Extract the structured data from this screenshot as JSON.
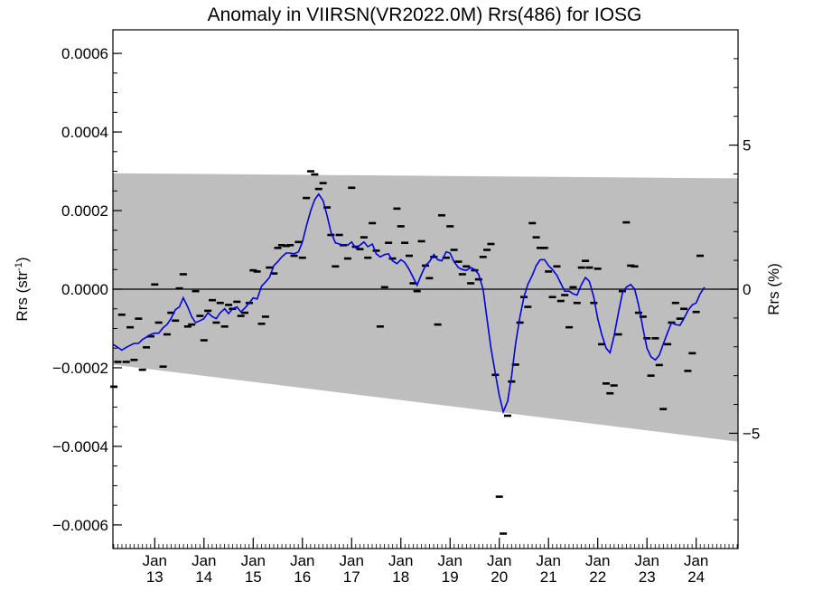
{
  "chart_data": {
    "type": "scatter",
    "title": "Anomaly in VIIRSN(VR2022.0M) Rrs(486) for IOSG",
    "ylabel": "Rrs (str",
    "ylabel_sup": "-1",
    "ylabel_close": ")",
    "y2label": "Rrs (%)",
    "xlabel": "",
    "x_range": [
      2012.15,
      2024.85
    ],
    "ylim": [
      -0.00066,
      0.00066
    ],
    "y2lim": [
      -9.0,
      9.0
    ],
    "y_ticks": [
      "0.0006",
      "0.0004",
      "0.0002",
      "0.0000",
      "−0.0002",
      "−0.0004",
      "−0.0006"
    ],
    "y_tick_values": [
      0.0006,
      0.0004,
      0.0002,
      0.0,
      -0.0002,
      -0.0004,
      -0.0006
    ],
    "y2_ticks": [
      "5",
      "0",
      "−5"
    ],
    "y2_tick_values": [
      5,
      0,
      -5
    ],
    "x_ticks": [
      {
        "month": "Jan",
        "year": "13",
        "value": 2013.0
      },
      {
        "month": "Jan",
        "year": "14",
        "value": 2014.0
      },
      {
        "month": "Jan",
        "year": "15",
        "value": 2015.0
      },
      {
        "month": "Jan",
        "year": "16",
        "value": 2016.0
      },
      {
        "month": "Jan",
        "year": "17",
        "value": 2017.0
      },
      {
        "month": "Jan",
        "year": "18",
        "value": 2018.0
      },
      {
        "month": "Jan",
        "year": "19",
        "value": 2019.0
      },
      {
        "month": "Jan",
        "year": "20",
        "value": 2020.0
      },
      {
        "month": "Jan",
        "year": "21",
        "value": 2021.0
      },
      {
        "month": "Jan",
        "year": "22",
        "value": 2022.0
      },
      {
        "month": "Jan",
        "year": "23",
        "value": 2023.0
      },
      {
        "month": "Jan",
        "year": "24",
        "value": 2024.0
      }
    ],
    "band": {
      "upper": [
        [
          2012.15,
          0.000295
        ],
        [
          2024.85,
          0.000282
        ]
      ],
      "lower": [
        [
          2012.15,
          -0.000192
        ],
        [
          2024.85,
          -0.000388
        ]
      ]
    },
    "band_color": "#bebebe",
    "zero_line": true,
    "points": [
      [
        2012.17,
        -0.000248
      ],
      [
        2012.25,
        -0.000185
      ],
      [
        2012.33,
        -6.5e-05
      ],
      [
        2012.42,
        -0.000185
      ],
      [
        2012.5,
        -9.7e-05
      ],
      [
        2012.58,
        -0.00018
      ],
      [
        2012.67,
        -7.5e-05
      ],
      [
        2012.75,
        -0.000205
      ],
      [
        2012.83,
        -0.000148
      ],
      [
        2012.92,
        -0.00012
      ],
      [
        2013.0,
        1.2e-05
      ],
      [
        2013.08,
        -8.5e-05
      ],
      [
        2013.17,
        -0.000197
      ],
      [
        2013.25,
        -0.000115
      ],
      [
        2013.33,
        -6e-05
      ],
      [
        2013.42,
        -8e-05
      ],
      [
        2013.5,
        2e-06
      ],
      [
        2013.58,
        3.8e-05
      ],
      [
        2013.67,
        -9.5e-05
      ],
      [
        2013.75,
        -9e-05
      ],
      [
        2013.83,
        -5e-06
      ],
      [
        2013.92,
        -6.8e-05
      ],
      [
        2014.0,
        -0.00013
      ],
      [
        2014.08,
        -5.5e-05
      ],
      [
        2014.17,
        -2.8e-05
      ],
      [
        2014.25,
        -8.5e-05
      ],
      [
        2014.33,
        -3.5e-05
      ],
      [
        2014.42,
        -9.5e-05
      ],
      [
        2014.5,
        -4e-05
      ],
      [
        2014.58,
        -5e-05
      ],
      [
        2014.67,
        -3.2e-05
      ],
      [
        2014.75,
        -6.8e-05
      ],
      [
        2014.83,
        -6e-05
      ],
      [
        2014.92,
        -3.5e-05
      ],
      [
        2015.0,
        4.8e-05
      ],
      [
        2015.08,
        4.5e-05
      ],
      [
        2015.17,
        -8.8e-05
      ],
      [
        2015.25,
        -7e-05
      ],
      [
        2015.33,
        5.5e-05
      ],
      [
        2015.42,
        4e-05
      ],
      [
        2015.5,
        0.000105
      ],
      [
        2015.58,
        0.000112
      ],
      [
        2015.67,
        0.00011
      ],
      [
        2015.75,
        0.000112
      ],
      [
        2015.83,
        8.5e-05
      ],
      [
        2015.92,
        0.00012
      ],
      [
        2016.0,
        8e-05
      ],
      [
        2016.08,
        0.000232
      ],
      [
        2016.17,
        0.0003
      ],
      [
        2016.25,
        0.000292
      ],
      [
        2016.33,
        0.000255
      ],
      [
        2016.42,
        0.00027
      ],
      [
        2016.5,
        0.000208
      ],
      [
        2016.58,
        0.000138
      ],
      [
        2016.67,
        5.8e-05
      ],
      [
        2016.75,
        0.000138
      ],
      [
        2016.83,
        0.000112
      ],
      [
        2016.92,
        7.8e-05
      ],
      [
        2017.0,
        0.000258
      ],
      [
        2017.08,
        0.000108
      ],
      [
        2017.17,
        0.000102
      ],
      [
        2017.25,
        0.000132
      ],
      [
        2017.33,
        8e-05
      ],
      [
        2017.42,
        0.000168
      ],
      [
        2017.5,
        9.8e-05
      ],
      [
        2017.58,
        -9.5e-05
      ],
      [
        2017.67,
        5e-06
      ],
      [
        2017.75,
        0.000118
      ],
      [
        2017.83,
        7.8e-05
      ],
      [
        2017.92,
        0.000205
      ],
      [
        2018.0,
        0.00016
      ],
      [
        2018.08,
        0.000118
      ],
      [
        2018.17,
        8.5e-05
      ],
      [
        2018.25,
        1.5e-05
      ],
      [
        2018.33,
        -5e-06
      ],
      [
        2018.42,
        0.000122
      ],
      [
        2018.5,
        6e-05
      ],
      [
        2018.58,
        2.8e-05
      ],
      [
        2018.67,
        8.2e-05
      ],
      [
        2018.75,
        -9e-05
      ],
      [
        2018.83,
        0.000188
      ],
      [
        2018.92,
        8e-05
      ],
      [
        2019.0,
        0.00016
      ],
      [
        2019.08,
        0.0001
      ],
      [
        2019.17,
        7e-05
      ],
      [
        2019.25,
        3.8e-05
      ],
      [
        2019.33,
        5.8e-05
      ],
      [
        2019.42,
        1.5e-05
      ],
      [
        2019.5,
        4.8e-05
      ],
      [
        2019.58,
        2.5e-05
      ],
      [
        2019.67,
        8.2e-05
      ],
      [
        2019.75,
        0.0001
      ],
      [
        2019.83,
        0.000115
      ],
      [
        2019.92,
        -0.000218
      ],
      [
        2020.0,
        -0.000528
      ],
      [
        2020.08,
        -0.000622
      ],
      [
        2020.17,
        -0.000322
      ],
      [
        2020.25,
        -0.000235
      ],
      [
        2020.33,
        -0.000192
      ],
      [
        2020.42,
        -8.5e-05
      ],
      [
        2020.5,
        -2e-05
      ],
      [
        2020.58,
        -4.5e-05
      ],
      [
        2020.67,
        0.000168
      ],
      [
        2020.75,
        0.000132
      ],
      [
        2020.83,
        0.000105
      ],
      [
        2020.92,
        0.000105
      ],
      [
        2021.0,
        4.5e-05
      ],
      [
        2021.08,
        -2e-05
      ],
      [
        2021.17,
        5.8e-05
      ],
      [
        2021.25,
        -3e-05
      ],
      [
        2021.33,
        -1.5e-05
      ],
      [
        2021.42,
        -9.7e-05
      ],
      [
        2021.5,
        5e-06
      ],
      [
        2021.58,
        -3.5e-05
      ],
      [
        2021.67,
        5.5e-05
      ],
      [
        2021.75,
        7.2e-05
      ],
      [
        2021.83,
        5.5e-05
      ],
      [
        2021.92,
        -3.5e-05
      ],
      [
        2022.0,
        5.2e-05
      ],
      [
        2022.08,
        -0.00014
      ],
      [
        2022.17,
        -0.00024
      ],
      [
        2022.25,
        -0.000265
      ],
      [
        2022.33,
        -0.000245
      ],
      [
        2022.42,
        -0.000115
      ],
      [
        2022.5,
        -5e-06
      ],
      [
        2022.58,
        0.00017
      ],
      [
        2022.67,
        6e-05
      ],
      [
        2022.75,
        5.8e-05
      ],
      [
        2022.83,
        -6e-05
      ],
      [
        2022.92,
        -7e-05
      ],
      [
        2023.0,
        -0.000125
      ],
      [
        2023.08,
        -0.00022
      ],
      [
        2023.17,
        -0.000125
      ],
      [
        2023.25,
        -0.000193
      ],
      [
        2023.33,
        -0.000305
      ],
      [
        2023.42,
        -0.00014
      ],
      [
        2023.5,
        -8.5e-05
      ],
      [
        2023.58,
        -3.5e-05
      ],
      [
        2023.67,
        -7.5e-05
      ],
      [
        2023.75,
        -5e-05
      ],
      [
        2023.83,
        -0.000208
      ],
      [
        2023.92,
        -0.000163
      ],
      [
        2024.0,
        -5.8e-05
      ],
      [
        2024.08,
        8.5e-05
      ]
    ],
    "line": [
      [
        2012.15,
        -0.00014
      ],
      [
        2012.25,
        -0.000148
      ],
      [
        2012.33,
        -0.000155
      ],
      [
        2012.42,
        -0.000148
      ],
      [
        2012.5,
        -0.000143
      ],
      [
        2012.58,
        -0.000138
      ],
      [
        2012.67,
        -0.000138
      ],
      [
        2012.75,
        -0.000128
      ],
      [
        2012.83,
        -0.000122
      ],
      [
        2012.92,
        -0.000115
      ],
      [
        2013.0,
        -0.000112
      ],
      [
        2013.08,
        -0.000112
      ],
      [
        2013.17,
        -9.8e-05
      ],
      [
        2013.25,
        -9e-05
      ],
      [
        2013.33,
        -7.5e-05
      ],
      [
        2013.42,
        -5.2e-05
      ],
      [
        2013.5,
        -4.5e-05
      ],
      [
        2013.58,
        -2.2e-05
      ],
      [
        2013.67,
        -4.5e-05
      ],
      [
        2013.75,
        -7e-05
      ],
      [
        2013.83,
        -8.5e-05
      ],
      [
        2013.92,
        -8e-05
      ],
      [
        2014.0,
        -7.5e-05
      ],
      [
        2014.08,
        -6e-05
      ],
      [
        2014.17,
        -7e-05
      ],
      [
        2014.25,
        -7.5e-05
      ],
      [
        2014.33,
        -6e-05
      ],
      [
        2014.42,
        -5e-05
      ],
      [
        2014.5,
        -6.2e-05
      ],
      [
        2014.58,
        -5e-05
      ],
      [
        2014.67,
        -4.5e-05
      ],
      [
        2014.75,
        -5.8e-05
      ],
      [
        2014.83,
        -4.8e-05
      ],
      [
        2014.92,
        -3.5e-05
      ],
      [
        2015.0,
        -2.2e-05
      ],
      [
        2015.08,
        -2.5e-05
      ],
      [
        2015.17,
        8e-06
      ],
      [
        2015.25,
        1.8e-05
      ],
      [
        2015.33,
        3e-05
      ],
      [
        2015.42,
        6e-05
      ],
      [
        2015.5,
        7e-05
      ],
      [
        2015.58,
        8.2e-05
      ],
      [
        2015.67,
        9.2e-05
      ],
      [
        2015.75,
        9.2e-05
      ],
      [
        2015.83,
        9e-05
      ],
      [
        2015.92,
        9.5e-05
      ],
      [
        2016.0,
        0.00012
      ],
      [
        2016.08,
        0.00016
      ],
      [
        2016.17,
        0.0002
      ],
      [
        2016.25,
        0.000228
      ],
      [
        2016.33,
        0.000242
      ],
      [
        2016.42,
        0.000225
      ],
      [
        2016.5,
        0.000188
      ],
      [
        2016.58,
        0.000145
      ],
      [
        2016.67,
        0.000118
      ],
      [
        2016.75,
        0.000115
      ],
      [
        2016.83,
        0.000112
      ],
      [
        2016.92,
        0.000112
      ],
      [
        2017.0,
        0.00012
      ],
      [
        2017.08,
        0.000105
      ],
      [
        2017.17,
        0.000112
      ],
      [
        2017.25,
        0.00012
      ],
      [
        2017.33,
        0.000108
      ],
      [
        2017.42,
        0.000115
      ],
      [
        2017.5,
        9e-05
      ],
      [
        2017.58,
        8.2e-05
      ],
      [
        2017.67,
        8.8e-05
      ],
      [
        2017.75,
        9e-05
      ],
      [
        2017.83,
        7.2e-05
      ],
      [
        2017.92,
        6.5e-05
      ],
      [
        2018.0,
        7.5e-05
      ],
      [
        2018.08,
        6.8e-05
      ],
      [
        2018.17,
        5e-05
      ],
      [
        2018.25,
        3e-05
      ],
      [
        2018.33,
        1e-05
      ],
      [
        2018.42,
        3.8e-05
      ],
      [
        2018.5,
        6e-05
      ],
      [
        2018.58,
        7e-05
      ],
      [
        2018.67,
        8.8e-05
      ],
      [
        2018.75,
        7.5e-05
      ],
      [
        2018.83,
        7.2e-05
      ],
      [
        2018.92,
        9.5e-05
      ],
      [
        2019.0,
        9.2e-05
      ],
      [
        2019.08,
        7e-05
      ],
      [
        2019.17,
        5.5e-05
      ],
      [
        2019.25,
        5e-05
      ],
      [
        2019.33,
        4.8e-05
      ],
      [
        2019.42,
        5.5e-05
      ],
      [
        2019.5,
        5e-05
      ],
      [
        2019.58,
        3.8e-05
      ],
      [
        2019.67,
        0.0
      ],
      [
        2019.75,
        -7.5e-05
      ],
      [
        2019.83,
        -0.00015
      ],
      [
        2019.92,
        -0.000215
      ],
      [
        2020.0,
        -0.00027
      ],
      [
        2020.08,
        -0.000312
      ],
      [
        2020.17,
        -0.000285
      ],
      [
        2020.25,
        -0.00022
      ],
      [
        2020.33,
        -0.00014
      ],
      [
        2020.42,
        -7e-05
      ],
      [
        2020.5,
        -2e-05
      ],
      [
        2020.58,
        1.2e-05
      ],
      [
        2020.67,
        3.5e-05
      ],
      [
        2020.75,
        6e-05
      ],
      [
        2020.83,
        7.5e-05
      ],
      [
        2020.92,
        7.5e-05
      ],
      [
        2021.0,
        6e-05
      ],
      [
        2021.08,
        5e-05
      ],
      [
        2021.17,
        3.5e-05
      ],
      [
        2021.25,
        1.5e-05
      ],
      [
        2021.33,
        -5e-06
      ],
      [
        2021.42,
        -5e-06
      ],
      [
        2021.5,
        -1.2e-05
      ],
      [
        2021.58,
        -1.5e-05
      ],
      [
        2021.67,
        1.2e-05
      ],
      [
        2021.75,
        3e-05
      ],
      [
        2021.83,
        2e-05
      ],
      [
        2021.92,
        -2e-05
      ],
      [
        2022.0,
        -7.5e-05
      ],
      [
        2022.08,
        -0.000115
      ],
      [
        2022.17,
        -0.00015
      ],
      [
        2022.25,
        -0.000162
      ],
      [
        2022.33,
        -0.00012
      ],
      [
        2022.42,
        -6e-05
      ],
      [
        2022.5,
        -1e-05
      ],
      [
        2022.58,
        5e-06
      ],
      [
        2022.67,
        1.2e-05
      ],
      [
        2022.75,
        0.0
      ],
      [
        2022.83,
        -4e-05
      ],
      [
        2022.92,
        -0.0001
      ],
      [
        2023.0,
        -0.00015
      ],
      [
        2023.08,
        -0.000172
      ],
      [
        2023.17,
        -0.00018
      ],
      [
        2023.25,
        -0.000168
      ],
      [
        2023.33,
        -0.00014
      ],
      [
        2023.42,
        -0.00011
      ],
      [
        2023.5,
        -8.5e-05
      ],
      [
        2023.58,
        -9e-05
      ],
      [
        2023.67,
        -9.2e-05
      ],
      [
        2023.75,
        -7.5e-05
      ],
      [
        2023.83,
        -5.5e-05
      ],
      [
        2023.92,
        -4e-05
      ],
      [
        2024.0,
        -3.5e-05
      ],
      [
        2024.08,
        -1.2e-05
      ],
      [
        2024.17,
        5e-06
      ]
    ],
    "line_color": "#0000dd",
    "point_color": "#000000",
    "grid": false,
    "legend": "none"
  }
}
